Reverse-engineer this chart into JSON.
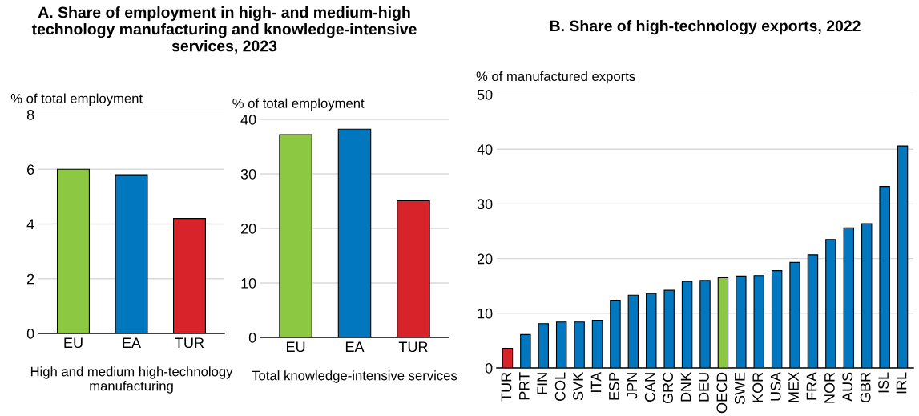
{
  "chart_data": [
    {
      "type": "bar",
      "title": "A. Share of employment in high- and medium-high technology manufacturing and knowledge-intensive services, 2023",
      "ylabel": "% of total employment",
      "xlabel": "High and medium high-technology manufacturing",
      "categories": [
        "EU",
        "EA",
        "TUR"
      ],
      "values": [
        6.0,
        5.8,
        4.2
      ],
      "colors": [
        "#8cc841",
        "#0077bf",
        "#d8232a"
      ],
      "ylim": [
        0,
        8
      ],
      "yticks": [
        0,
        2,
        4,
        6,
        8
      ],
      "grid": "y"
    },
    {
      "type": "bar",
      "ylabel": "% of total employment",
      "xlabel": "Total knowledge-intensive services",
      "categories": [
        "EU",
        "EA",
        "TUR"
      ],
      "values": [
        37.2,
        38.2,
        25.1
      ],
      "colors": [
        "#8cc841",
        "#0077bf",
        "#d8232a"
      ],
      "ylim": [
        0,
        40
      ],
      "yticks": [
        0,
        10,
        20,
        30,
        40
      ],
      "grid": "y"
    },
    {
      "type": "bar",
      "title": "B. Share of high-technology exports, 2022",
      "ylabel": "% of manufactured exports",
      "categories": [
        "TUR",
        "PRT",
        "FIN",
        "COL",
        "SVK",
        "ITA",
        "ESP",
        "JPN",
        "CAN",
        "GRC",
        "DNK",
        "DEU",
        "OECD",
        "SWE",
        "KOR",
        "USA",
        "MEX",
        "FRA",
        "NOR",
        "AUS",
        "GBR",
        "ISL",
        "IRL"
      ],
      "values": [
        3.6,
        6.1,
        8.1,
        8.4,
        8.4,
        8.7,
        12.4,
        13.3,
        13.6,
        14.2,
        15.8,
        16.0,
        16.5,
        16.8,
        16.9,
        17.8,
        19.3,
        20.7,
        23.5,
        25.6,
        26.4,
        33.2,
        40.6
      ],
      "colors": [
        "#d8232a",
        "#0077bf",
        "#0077bf",
        "#0077bf",
        "#0077bf",
        "#0077bf",
        "#0077bf",
        "#0077bf",
        "#0077bf",
        "#0077bf",
        "#0077bf",
        "#0077bf",
        "#8cc841",
        "#0077bf",
        "#0077bf",
        "#0077bf",
        "#0077bf",
        "#0077bf",
        "#0077bf",
        "#0077bf",
        "#0077bf",
        "#0077bf",
        "#0077bf"
      ],
      "ylim": [
        0,
        50
      ],
      "yticks": [
        0,
        10,
        20,
        30,
        40,
        50
      ],
      "grid": "y"
    }
  ]
}
